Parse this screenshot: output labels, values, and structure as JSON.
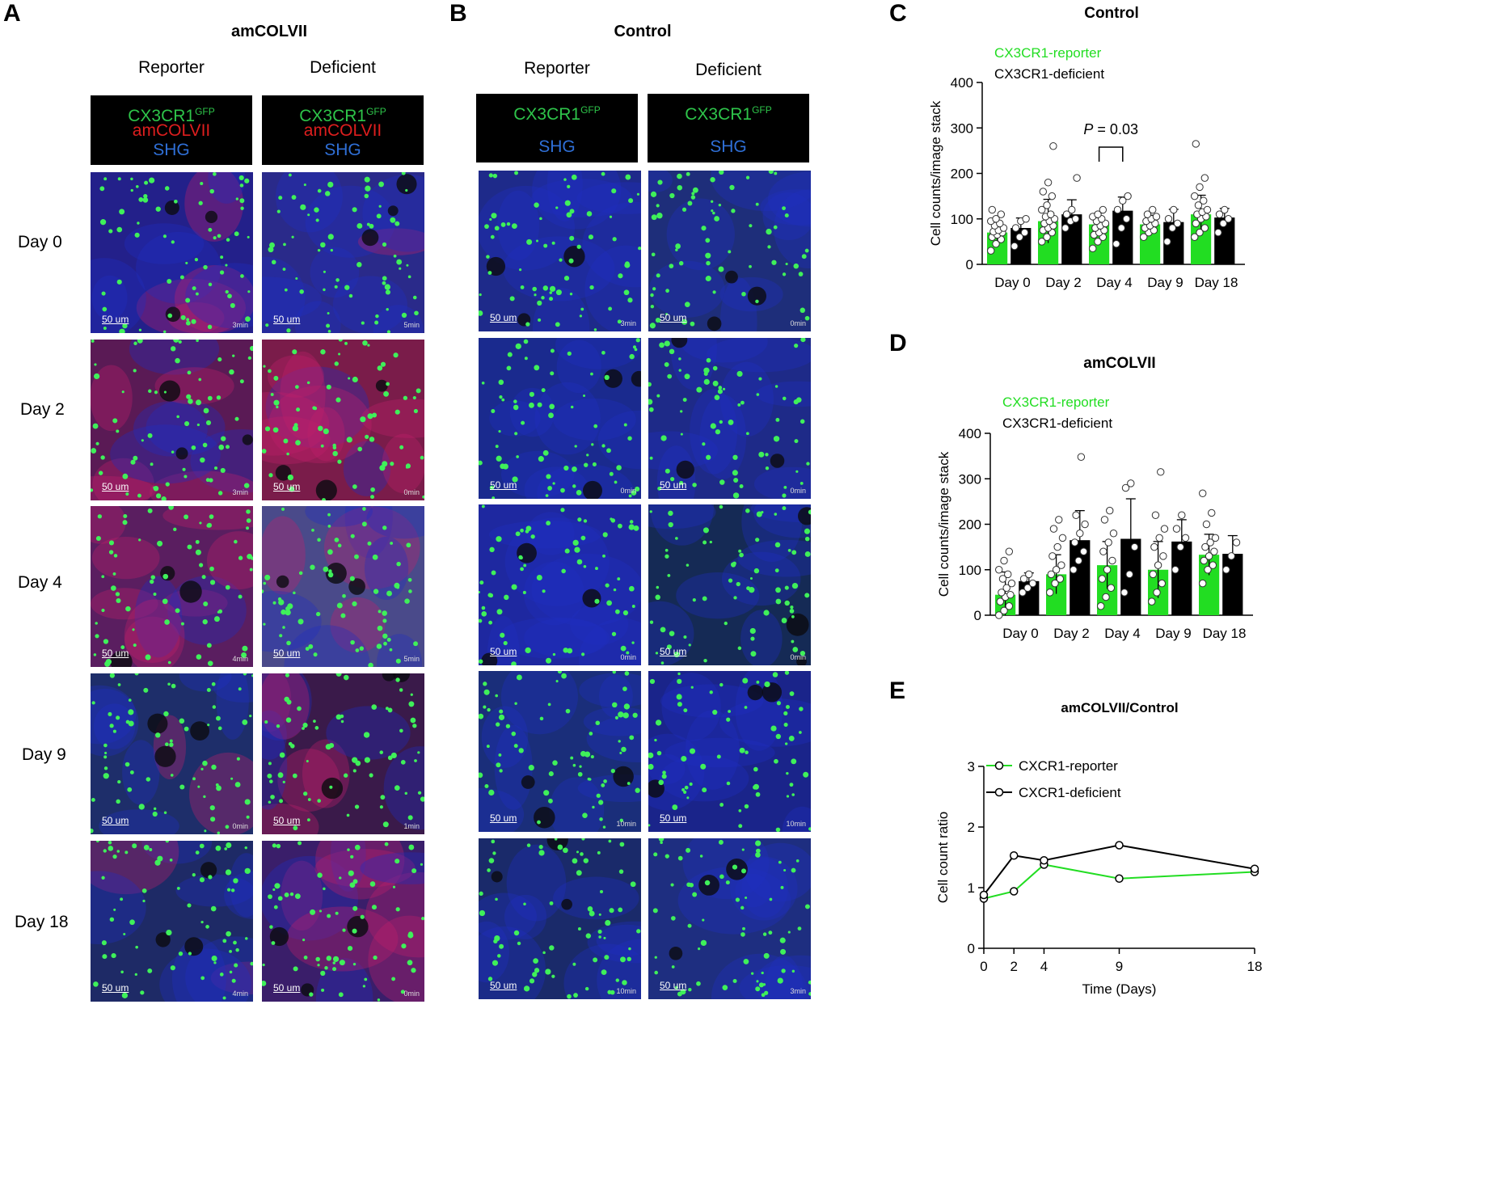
{
  "panels": {
    "A": {
      "letter": "A",
      "title": "amCOLVII",
      "col_reporter": "Reporter",
      "col_deficient": "Deficient",
      "legend_gfp": "CX3CR1",
      "legend_gfp_sup": "GFP",
      "legend_red": "amCOLVII",
      "legend_shg": "SHG"
    },
    "B": {
      "letter": "B",
      "title": "Control",
      "col_reporter": "Reporter",
      "col_deficient": "Deficient",
      "legend_gfp": "CX3CR1",
      "legend_gfp_sup": "GFP",
      "legend_shg": "SHG"
    },
    "C": {
      "letter": "C"
    },
    "D": {
      "letter": "D"
    },
    "E": {
      "letter": "E"
    }
  },
  "rows": [
    "Day 0",
    "Day 2",
    "Day 4",
    "Day 9",
    "Day 18"
  ],
  "scale_bar": "50 um",
  "images_A": [
    {
      "rep_time": "3min",
      "def_time": "5min",
      "rep_tint": "#23208a",
      "def_tint": "#2a2a8a",
      "rep_red": 0.35,
      "def_red": 0.1
    },
    {
      "rep_time": "3min",
      "def_time": "0min",
      "rep_tint": "#5a1a55",
      "def_tint": "#7a1c4a",
      "rep_red": 0.7,
      "def_red": 0.8
    },
    {
      "rep_time": "4min",
      "def_time": "5min",
      "rep_tint": "#5a1e60",
      "def_tint": "#4a4a8a",
      "rep_red": 0.7,
      "def_red": 0.5
    },
    {
      "rep_time": "0min",
      "def_time": "1min",
      "rep_tint": "#1e2e6a",
      "def_tint": "#3a1a4a",
      "rep_red": 0.1,
      "def_red": 0.6
    },
    {
      "rep_time": "4min",
      "def_time": "0min",
      "rep_tint": "#1e2a66",
      "def_tint": "#3a1e6a",
      "rep_red": 0.2,
      "def_red": 0.4
    }
  ],
  "images_B": [
    {
      "rep_time": "3min",
      "def_time": "0min",
      "rep_tint": "#1e2a8a",
      "def_tint": "#1e2e7a"
    },
    {
      "rep_time": "0min",
      "def_time": "0min",
      "rep_tint": "#1a2a8e",
      "def_tint": "#1e2a88"
    },
    {
      "rep_time": "0min",
      "def_time": "0min",
      "rep_tint": "#1e28a0",
      "def_tint": "#152a55"
    },
    {
      "rep_time": "10min",
      "def_time": "10min",
      "rep_tint": "#1a2e7a",
      "def_tint": "#1a248a"
    },
    {
      "rep_time": "10min",
      "def_time": "3min",
      "rep_tint": "#1a2a6a",
      "def_tint": "#1e2e80"
    }
  ],
  "chart_data": [
    {
      "type": "bar",
      "title": "Control",
      "ylabel": "Cell counts/image stack",
      "xlabel": "",
      "ylim": [
        0,
        400
      ],
      "yticks": [
        0,
        100,
        200,
        300,
        400
      ],
      "categories": [
        "Day 0",
        "Day 2",
        "Day 4",
        "Day 9",
        "Day 18"
      ],
      "legend": "top-left",
      "series": [
        {
          "name": "CX3CR1-reporter",
          "color": "#22dd22",
          "values": [
            70,
            95,
            88,
            88,
            110
          ],
          "sd": [
            20,
            48,
            25,
            20,
            42
          ],
          "points": [
            [
              30,
              45,
              55,
              60,
              65,
              70,
              72,
              75,
              80,
              85,
              90,
              95,
              100,
              110,
              120
            ],
            [
              50,
              60,
              70,
              75,
              80,
              85,
              90,
              95,
              100,
              105,
              110,
              120,
              130,
              150,
              160,
              180,
              260
            ],
            [
              35,
              50,
              60,
              65,
              70,
              75,
              80,
              85,
              90,
              95,
              100,
              105,
              110,
              120
            ],
            [
              60,
              70,
              75,
              80,
              85,
              90,
              95,
              100,
              105,
              110,
              120
            ],
            [
              60,
              70,
              80,
              90,
              100,
              105,
              110,
              115,
              120,
              130,
              140,
              150,
              170,
              190,
              265
            ]
          ]
        },
        {
          "name": "CX3CR1-deficient",
          "color": "#000000",
          "values": [
            80,
            110,
            118,
            93,
            103
          ],
          "sd": [
            22,
            32,
            30,
            28,
            20
          ],
          "points": [
            [
              40,
              60,
              70,
              80,
              95,
              100
            ],
            [
              80,
              95,
              100,
              110,
              120,
              190
            ],
            [
              45,
              80,
              100,
              120,
              140,
              150
            ],
            [
              50,
              80,
              90,
              100,
              120
            ],
            [
              70,
              90,
              100,
              110,
              120
            ]
          ]
        }
      ],
      "annotation": {
        "text_italic": "P",
        "text": " = 0.03",
        "between": [
          4,
          4
        ]
      }
    },
    {
      "type": "bar",
      "title": "amCOLVII",
      "ylabel": "Cell counts/image stack",
      "xlabel": "",
      "ylim": [
        0,
        400
      ],
      "yticks": [
        0,
        100,
        200,
        300,
        400
      ],
      "categories": [
        "Day 0",
        "Day 2",
        "Day 4",
        "Day 9",
        "Day 18"
      ],
      "legend": "top-left",
      "series": [
        {
          "name": "CX3CR1-reporter",
          "color": "#22dd22",
          "values": [
            45,
            90,
            110,
            100,
            133
          ],
          "sd": [
            50,
            43,
            52,
            62,
            45
          ],
          "points": [
            [
              0,
              10,
              20,
              30,
              40,
              45,
              50,
              60,
              70,
              80,
              90,
              100,
              120,
              140
            ],
            [
              50,
              70,
              80,
              90,
              100,
              110,
              130,
              150,
              170,
              190,
              210
            ],
            [
              20,
              40,
              60,
              80,
              100,
              120,
              140,
              160,
              180,
              210,
              230
            ],
            [
              30,
              50,
              70,
              90,
              110,
              130,
              150,
              170,
              190,
              220,
              315
            ],
            [
              70,
              100,
              110,
              120,
              130,
              140,
              150,
              160,
              170,
              200,
              225,
              268
            ]
          ]
        },
        {
          "name": "CX3CR1-deficient",
          "color": "#000000",
          "values": [
            75,
            165,
            168,
            162,
            135
          ],
          "sd": [
            18,
            65,
            88,
            48,
            40
          ],
          "points": [
            [
              50,
              60,
              70,
              80,
              90
            ],
            [
              100,
              120,
              140,
              160,
              180,
              200,
              220,
              348
            ],
            [
              50,
              90,
              150,
              280,
              290
            ],
            [
              100,
              150,
              170,
              190,
              220
            ],
            [
              100,
              130,
              160
            ]
          ]
        }
      ]
    },
    {
      "type": "line",
      "title": "amCOLVII/Control",
      "xlabel": "Time (Days)",
      "ylabel": "Cell count ratio",
      "x": [
        0,
        2,
        4,
        9,
        18
      ],
      "xticks": [
        0,
        2,
        4,
        9,
        18
      ],
      "xlim": [
        0,
        18
      ],
      "ylim": [
        0,
        3
      ],
      "yticks": [
        0,
        1,
        2,
        3
      ],
      "legend": "top-left",
      "series": [
        {
          "name": "CXCR1-reporter",
          "color": "#22dd22",
          "values": [
            0.82,
            0.94,
            1.38,
            1.15,
            1.26
          ]
        },
        {
          "name": "CXCR1-deficient",
          "color": "#000000",
          "values": [
            0.88,
            1.53,
            1.45,
            1.7,
            1.31
          ]
        }
      ]
    }
  ]
}
